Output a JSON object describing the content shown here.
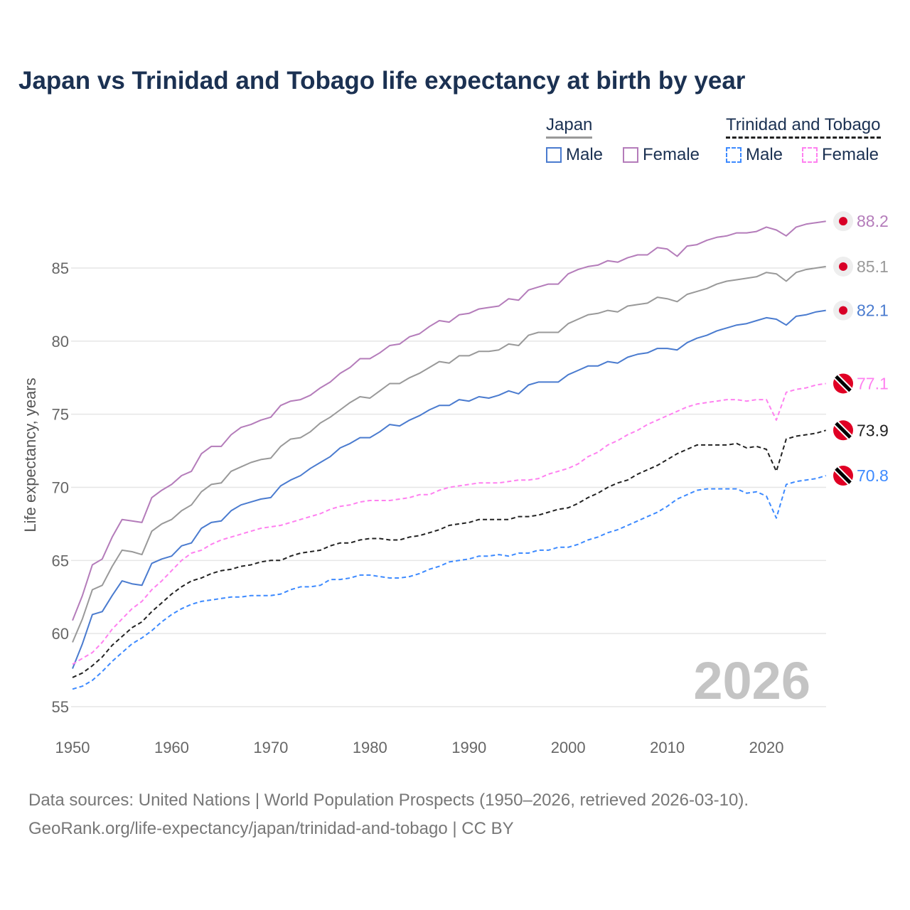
{
  "title": "Japan vs Trinidad and Tobago life expectancy at birth by year",
  "legend": {
    "groups": [
      {
        "name": "Japan",
        "items": [
          "Male",
          "Female"
        ]
      },
      {
        "name": "Trinidad and Tobago",
        "items": [
          "Male",
          "Female"
        ]
      }
    ]
  },
  "footer": {
    "line1": "Data sources: United Nations | World Population Prospects (1950–2026, retrieved 2026-03-10).",
    "line2": "GeoRank.org/life-expectancy/japan/trinidad-and-tobago | CC BY"
  },
  "chart_data": {
    "type": "line",
    "title": "Japan vs Trinidad and Tobago life expectancy at birth by year",
    "xlabel": "",
    "ylabel": "Life expectancy, years",
    "xlim": [
      1950,
      2026
    ],
    "ylim": [
      55,
      88.5
    ],
    "xticks": [
      1950,
      1960,
      1970,
      1980,
      1990,
      2000,
      2010,
      2020
    ],
    "yticks": [
      55,
      60,
      65,
      70,
      75,
      80,
      85
    ],
    "grid": true,
    "watermark": "2026",
    "x_start": 1950,
    "series": [
      {
        "name": "Japan Female",
        "color": "#b47cba",
        "dashed": false,
        "flag": "japan",
        "end_label": "88.2",
        "values": [
          60.9,
          62.6,
          64.7,
          65.1,
          66.6,
          67.8,
          67.7,
          67.6,
          69.3,
          69.8,
          70.2,
          70.8,
          71.1,
          72.3,
          72.8,
          72.8,
          73.6,
          74.1,
          74.3,
          74.6,
          74.8,
          75.6,
          75.9,
          76.0,
          76.3,
          76.8,
          77.2,
          77.8,
          78.2,
          78.8,
          78.8,
          79.2,
          79.7,
          79.8,
          80.3,
          80.5,
          81.0,
          81.4,
          81.3,
          81.8,
          81.9,
          82.2,
          82.3,
          82.4,
          82.9,
          82.8,
          83.5,
          83.7,
          83.9,
          83.9,
          84.6,
          84.9,
          85.1,
          85.2,
          85.5,
          85.4,
          85.7,
          85.9,
          85.9,
          86.4,
          86.3,
          85.8,
          86.5,
          86.6,
          86.9,
          87.1,
          87.2,
          87.4,
          87.4,
          87.5,
          87.8,
          87.6,
          87.2,
          87.8,
          88.0,
          88.1,
          88.2
        ]
      },
      {
        "name": "Japan Total",
        "color": "#999999",
        "dashed": false,
        "flag": "japan",
        "end_label": "85.1",
        "values": [
          59.4,
          61.0,
          63.0,
          63.3,
          64.6,
          65.7,
          65.6,
          65.4,
          67.0,
          67.5,
          67.8,
          68.4,
          68.8,
          69.7,
          70.2,
          70.3,
          71.1,
          71.4,
          71.7,
          71.9,
          72.0,
          72.8,
          73.3,
          73.4,
          73.8,
          74.4,
          74.8,
          75.3,
          75.8,
          76.2,
          76.1,
          76.6,
          77.1,
          77.1,
          77.5,
          77.8,
          78.2,
          78.6,
          78.5,
          79.0,
          79.0,
          79.3,
          79.3,
          79.4,
          79.8,
          79.7,
          80.4,
          80.6,
          80.6,
          80.6,
          81.2,
          81.5,
          81.8,
          81.9,
          82.1,
          82.0,
          82.4,
          82.5,
          82.6,
          83.0,
          82.9,
          82.7,
          83.2,
          83.4,
          83.6,
          83.9,
          84.1,
          84.2,
          84.3,
          84.4,
          84.7,
          84.6,
          84.1,
          84.7,
          84.9,
          85.0,
          85.1
        ]
      },
      {
        "name": "Japan Male",
        "color": "#4a7bcf",
        "dashed": false,
        "flag": "japan",
        "end_label": "82.1",
        "values": [
          57.6,
          59.3,
          61.3,
          61.5,
          62.6,
          63.6,
          63.4,
          63.3,
          64.8,
          65.1,
          65.3,
          66.0,
          66.2,
          67.2,
          67.6,
          67.7,
          68.4,
          68.8,
          69.0,
          69.2,
          69.3,
          70.1,
          70.5,
          70.8,
          71.3,
          71.7,
          72.1,
          72.7,
          73.0,
          73.4,
          73.4,
          73.8,
          74.3,
          74.2,
          74.6,
          74.9,
          75.3,
          75.6,
          75.6,
          76.0,
          75.9,
          76.2,
          76.1,
          76.3,
          76.6,
          76.4,
          77.0,
          77.2,
          77.2,
          77.2,
          77.7,
          78.0,
          78.3,
          78.3,
          78.6,
          78.5,
          78.9,
          79.1,
          79.2,
          79.5,
          79.5,
          79.4,
          79.9,
          80.2,
          80.4,
          80.7,
          80.9,
          81.1,
          81.2,
          81.4,
          81.6,
          81.5,
          81.1,
          81.7,
          81.8,
          82.0,
          82.1
        ]
      },
      {
        "name": "Trinidad and Tobago Female",
        "color": "#ff80f0",
        "dashed": true,
        "flag": "tt",
        "end_label": "77.1",
        "values": [
          57.9,
          58.3,
          58.7,
          59.4,
          60.3,
          61.0,
          61.7,
          62.2,
          63.0,
          63.6,
          64.3,
          65.0,
          65.5,
          65.7,
          66.1,
          66.4,
          66.6,
          66.8,
          67.0,
          67.2,
          67.3,
          67.4,
          67.6,
          67.8,
          68.0,
          68.2,
          68.5,
          68.7,
          68.8,
          69.0,
          69.1,
          69.1,
          69.1,
          69.2,
          69.3,
          69.5,
          69.5,
          69.8,
          70.0,
          70.1,
          70.2,
          70.3,
          70.3,
          70.3,
          70.4,
          70.5,
          70.5,
          70.6,
          70.9,
          71.1,
          71.3,
          71.6,
          72.1,
          72.4,
          72.9,
          73.2,
          73.6,
          73.9,
          74.3,
          74.6,
          74.9,
          75.2,
          75.5,
          75.7,
          75.8,
          75.9,
          76.0,
          76.0,
          75.9,
          76.0,
          76.0,
          74.6,
          76.5,
          76.7,
          76.8,
          77.0,
          77.1
        ]
      },
      {
        "name": "Trinidad and Tobago Total",
        "color": "#222222",
        "dashed": true,
        "flag": "tt",
        "end_label": "73.9",
        "values": [
          57.0,
          57.3,
          57.8,
          58.4,
          59.2,
          59.8,
          60.4,
          60.8,
          61.5,
          62.1,
          62.7,
          63.2,
          63.6,
          63.8,
          64.1,
          64.3,
          64.4,
          64.6,
          64.7,
          64.9,
          65.0,
          65.0,
          65.3,
          65.5,
          65.6,
          65.7,
          66.0,
          66.2,
          66.2,
          66.4,
          66.5,
          66.5,
          66.4,
          66.4,
          66.6,
          66.7,
          66.9,
          67.1,
          67.4,
          67.5,
          67.6,
          67.8,
          67.8,
          67.8,
          67.8,
          68.0,
          68.0,
          68.1,
          68.3,
          68.5,
          68.6,
          68.9,
          69.3,
          69.6,
          70.0,
          70.3,
          70.5,
          70.9,
          71.2,
          71.5,
          71.9,
          72.3,
          72.6,
          72.9,
          72.9,
          72.9,
          72.9,
          73.0,
          72.7,
          72.8,
          72.6,
          71.1,
          73.3,
          73.5,
          73.6,
          73.7,
          73.9
        ]
      },
      {
        "name": "Trinidad and Tobago Male",
        "color": "#3d8aff",
        "dashed": true,
        "flag": "tt",
        "end_label": "70.8",
        "values": [
          56.2,
          56.4,
          56.8,
          57.4,
          58.1,
          58.7,
          59.3,
          59.7,
          60.2,
          60.8,
          61.3,
          61.7,
          62.0,
          62.2,
          62.3,
          62.4,
          62.5,
          62.5,
          62.6,
          62.6,
          62.6,
          62.7,
          63.0,
          63.2,
          63.2,
          63.3,
          63.7,
          63.7,
          63.8,
          64.0,
          64.0,
          63.9,
          63.8,
          63.8,
          63.9,
          64.1,
          64.4,
          64.6,
          64.9,
          65.0,
          65.1,
          65.3,
          65.3,
          65.4,
          65.3,
          65.5,
          65.5,
          65.7,
          65.7,
          65.9,
          65.9,
          66.1,
          66.4,
          66.6,
          66.9,
          67.1,
          67.4,
          67.7,
          68.0,
          68.3,
          68.7,
          69.2,
          69.5,
          69.8,
          69.9,
          69.9,
          69.9,
          69.9,
          69.6,
          69.7,
          69.4,
          67.9,
          70.2,
          70.4,
          70.5,
          70.6,
          70.8
        ]
      }
    ]
  }
}
